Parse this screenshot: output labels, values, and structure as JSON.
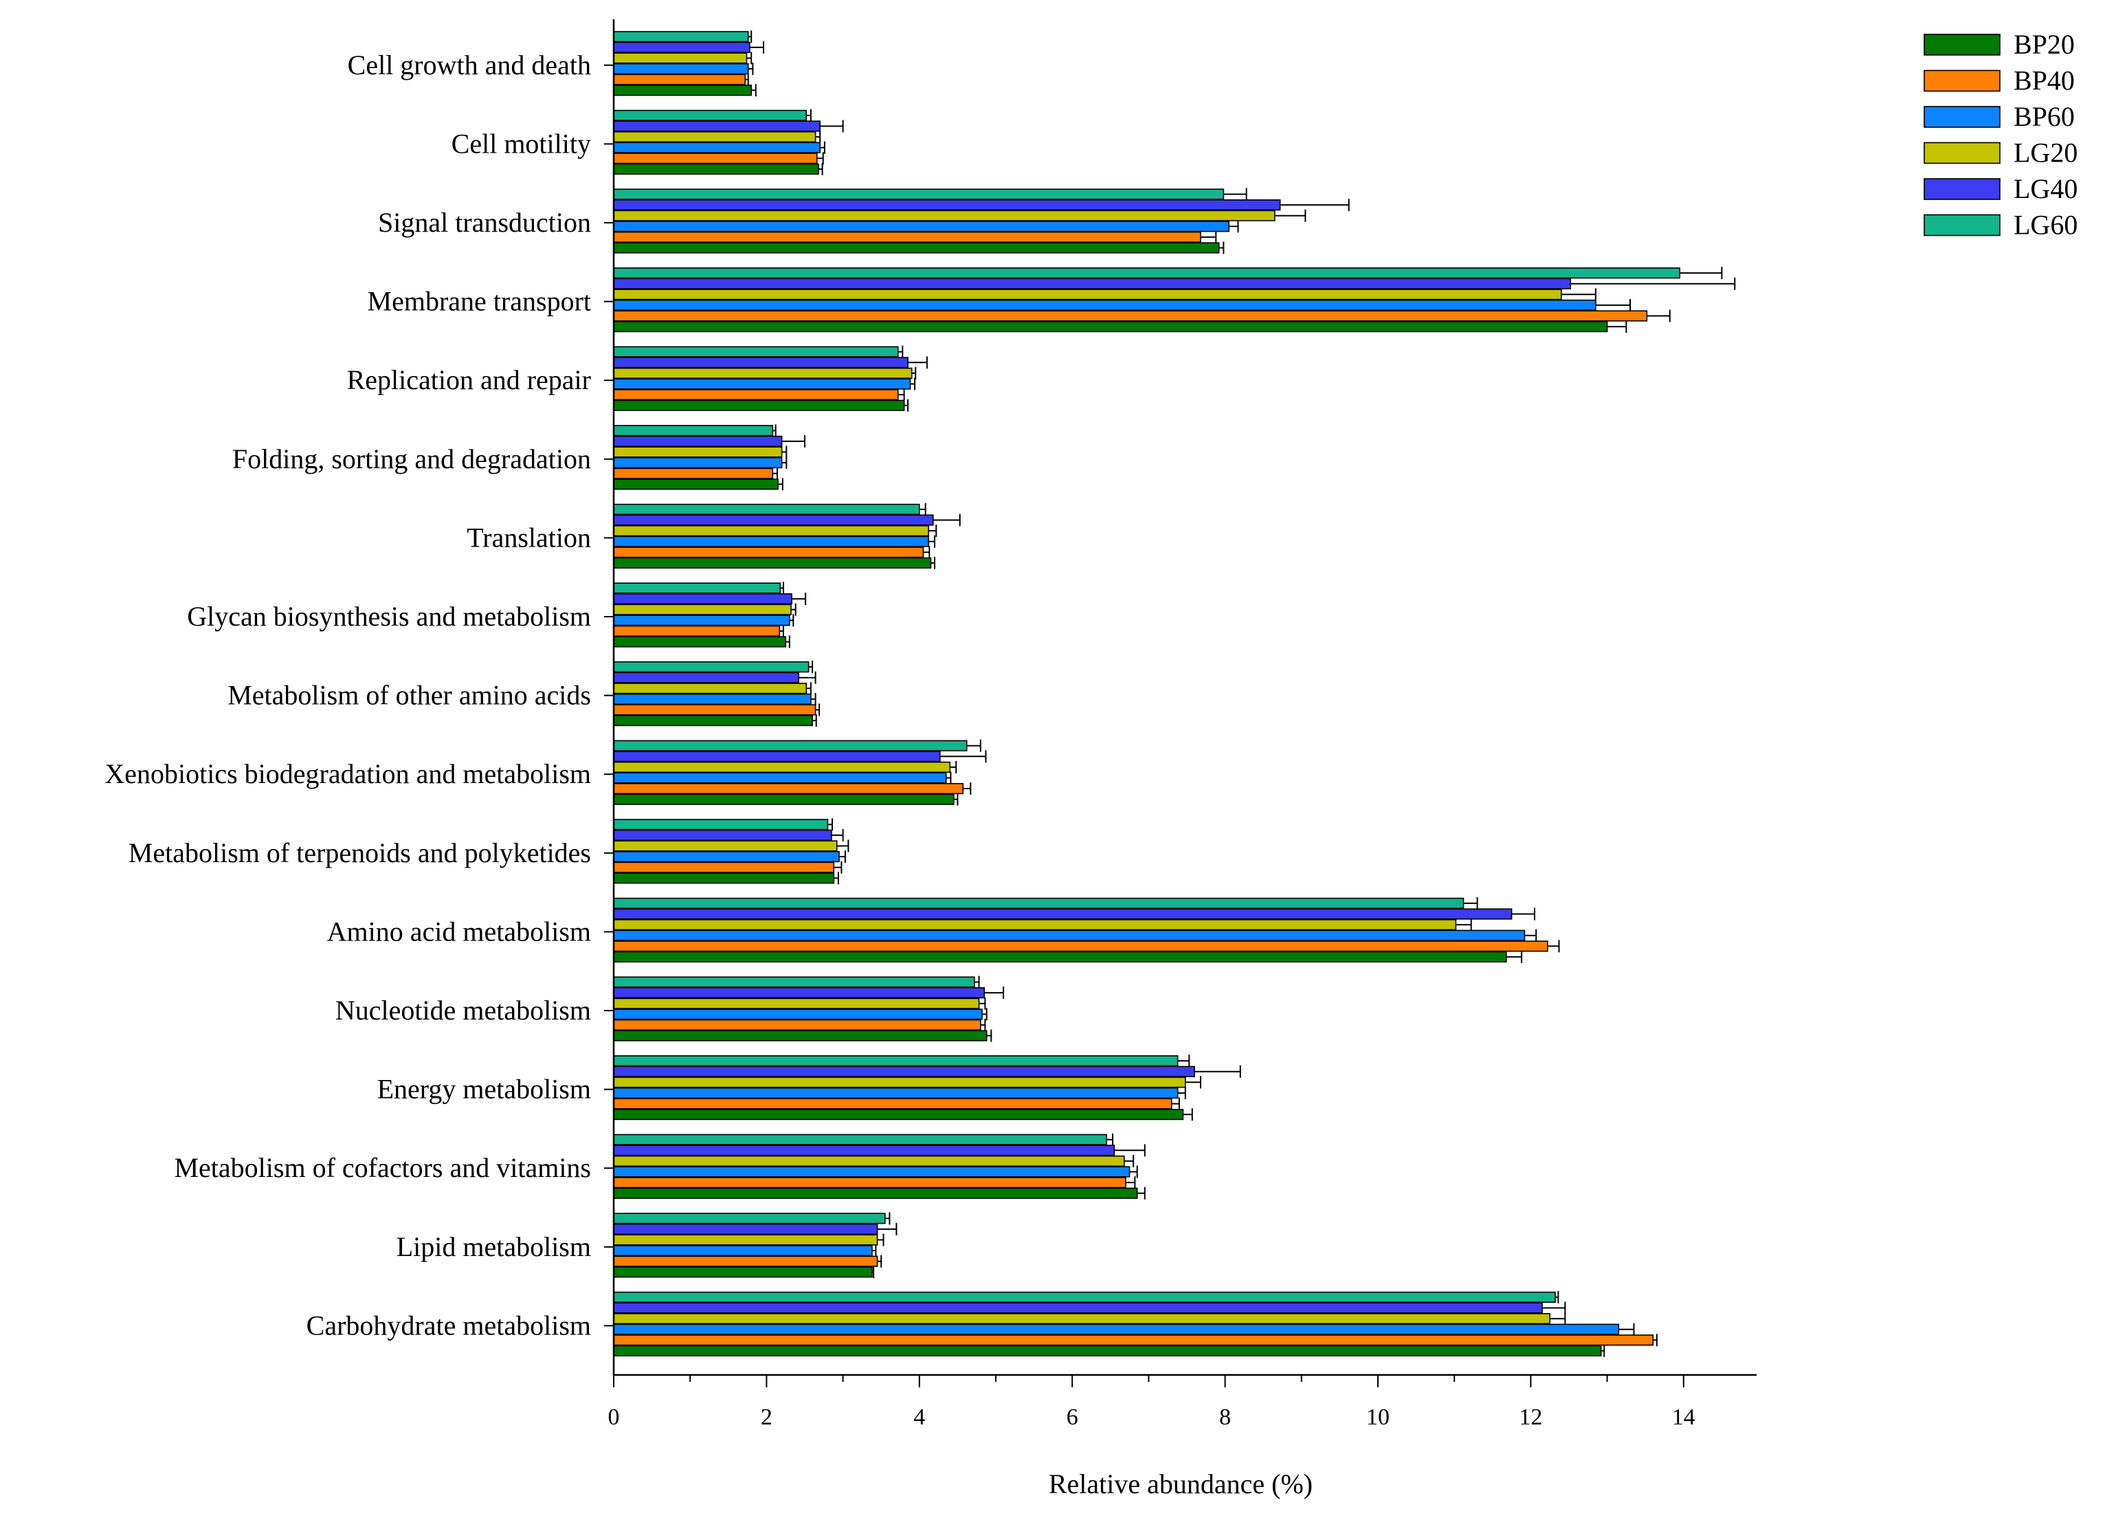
{
  "chart_data": {
    "type": "bar",
    "orientation": "horizontal",
    "title": "",
    "xlabel": "Relative abundance (%)",
    "ylabel": "",
    "xlim": [
      0,
      15
    ],
    "xticks": [
      0,
      2,
      4,
      6,
      8,
      10,
      12,
      14
    ],
    "legend_position": "top-right",
    "categories": [
      "Cell growth and death",
      "Cell motility",
      "Signal transduction",
      "Membrane transport",
      "Replication and repair",
      "Folding, sorting and degradation",
      "Translation",
      "Glycan biosynthesis and metabolism",
      "Metabolism of other amino acids",
      "Xenobiotics biodegradation and metabolism",
      "Metabolism of terpenoids and polyketides",
      "Amino acid metabolism",
      "Nucleotide metabolism",
      "Energy metabolism",
      "Metabolism of cofactors and vitamins",
      "Lipid metabolism",
      "Carbohydrate metabolism"
    ],
    "series": [
      {
        "name": "BP20",
        "color": "#007a00",
        "values": [
          1.8,
          2.68,
          7.92,
          13.0,
          3.8,
          2.15,
          4.15,
          2.25,
          2.6,
          4.45,
          2.88,
          11.68,
          4.88,
          7.45,
          6.85,
          3.38,
          12.92
        ],
        "errors": [
          0.06,
          0.05,
          0.06,
          0.25,
          0.05,
          0.06,
          0.05,
          0.05,
          0.05,
          0.05,
          0.06,
          0.2,
          0.06,
          0.12,
          0.1,
          0.02,
          0.04
        ]
      },
      {
        "name": "BP40",
        "color": "#ff7f00",
        "values": [
          1.72,
          2.66,
          7.68,
          13.52,
          3.72,
          2.08,
          4.05,
          2.17,
          2.64,
          4.57,
          2.88,
          12.22,
          4.8,
          7.3,
          6.7,
          3.45,
          13.6
        ],
        "errors": [
          0.04,
          0.08,
          0.2,
          0.3,
          0.08,
          0.06,
          0.08,
          0.05,
          0.05,
          0.1,
          0.1,
          0.15,
          0.06,
          0.1,
          0.12,
          0.05,
          0.05
        ]
      },
      {
        "name": "BP60",
        "color": "#0a84ff",
        "values": [
          1.76,
          2.7,
          8.05,
          12.85,
          3.88,
          2.2,
          4.12,
          2.3,
          2.58,
          4.35,
          2.95,
          11.92,
          4.82,
          7.38,
          6.75,
          3.38,
          13.15
        ],
        "errors": [
          0.06,
          0.06,
          0.12,
          0.45,
          0.06,
          0.06,
          0.08,
          0.05,
          0.06,
          0.06,
          0.08,
          0.15,
          0.06,
          0.1,
          0.1,
          0.05,
          0.2
        ]
      },
      {
        "name": "LG20",
        "color": "#c3c300",
        "values": [
          1.74,
          2.64,
          8.65,
          12.4,
          3.9,
          2.2,
          4.12,
          2.32,
          2.52,
          4.4,
          2.92,
          11.02,
          4.78,
          7.48,
          6.68,
          3.45,
          12.25
        ],
        "errors": [
          0.06,
          0.06,
          0.4,
          0.45,
          0.05,
          0.06,
          0.1,
          0.06,
          0.06,
          0.08,
          0.15,
          0.2,
          0.08,
          0.2,
          0.12,
          0.08,
          0.2
        ]
      },
      {
        "name": "LG40",
        "color": "#3c3cf0",
        "values": [
          1.78,
          2.7,
          8.72,
          12.52,
          3.85,
          2.2,
          4.18,
          2.33,
          2.42,
          4.27,
          2.85,
          11.75,
          4.85,
          7.6,
          6.55,
          3.45,
          12.15
        ],
        "errors": [
          0.18,
          0.3,
          0.9,
          2.15,
          0.25,
          0.3,
          0.35,
          0.18,
          0.22,
          0.6,
          0.15,
          0.3,
          0.25,
          0.6,
          0.4,
          0.25,
          0.3
        ]
      },
      {
        "name": "LG60",
        "color": "#14b48c",
        "values": [
          1.76,
          2.52,
          7.98,
          13.95,
          3.72,
          2.08,
          4.0,
          2.18,
          2.55,
          4.62,
          2.8,
          11.12,
          4.72,
          7.38,
          6.45,
          3.55,
          12.32
        ],
        "errors": [
          0.04,
          0.06,
          0.3,
          0.55,
          0.06,
          0.04,
          0.08,
          0.04,
          0.05,
          0.18,
          0.06,
          0.18,
          0.06,
          0.15,
          0.08,
          0.06,
          0.04
        ]
      }
    ]
  }
}
